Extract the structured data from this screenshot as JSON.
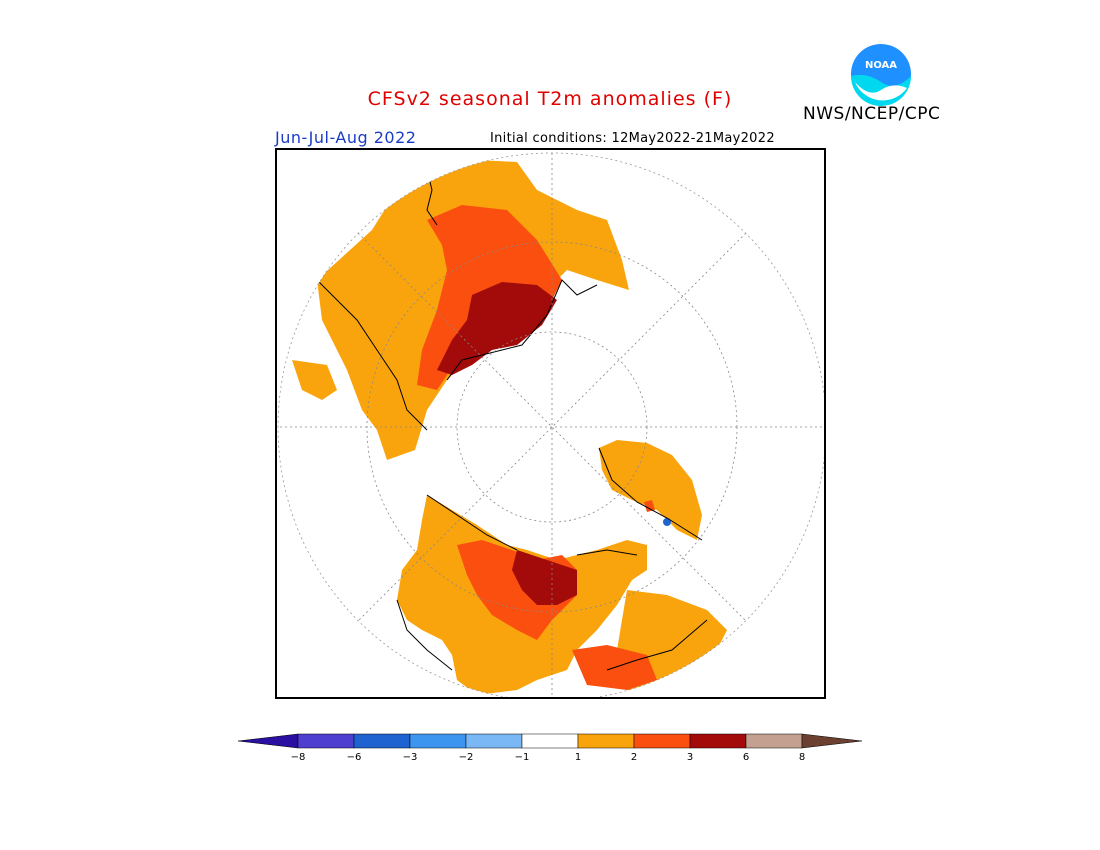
{
  "header": {
    "title": "CFSv2 seasonal T2m anomalies (F)",
    "period": "Jun-Jul-Aug 2022",
    "initial_conditions": "Initial conditions: 12May2022-21May2022",
    "agency": "NWS/NCEP/CPC",
    "logo_text": "NOAA"
  },
  "legend": {
    "ticks": [
      "−8",
      "−6",
      "−3",
      "−2",
      "−1",
      "1",
      "2",
      "3",
      "6",
      "8"
    ],
    "colors": {
      "lt_neg8": "#2a0fa0",
      "neg8_neg6": "#4f3fd0",
      "neg6_neg3": "#1f63d1",
      "neg3_neg2": "#3d95ef",
      "neg2_neg1": "#79b8f5",
      "neg1_1": "#ffffff",
      "1_2": "#f9a40c",
      "2_3": "#fb4f10",
      "3_6": "#a30a0a",
      "6_8": "#c4a090",
      "gt_8": "#6b4030"
    }
  },
  "map": {
    "projection": "polar-stereographic-north",
    "graticule": "dotted"
  }
}
